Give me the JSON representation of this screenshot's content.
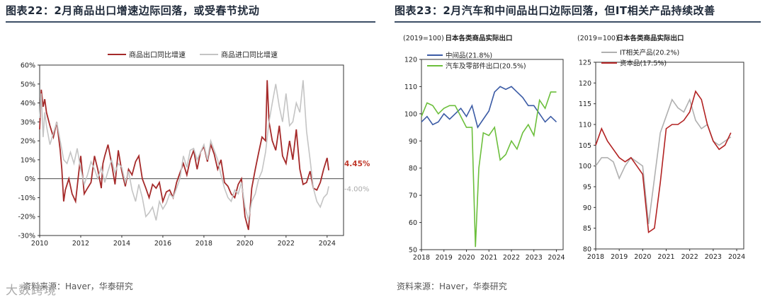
{
  "left": {
    "title": "图表22：2月商品出口增速边际回落，或受春节扰动",
    "source": "资料来源：Haver，华泰研究",
    "chart_data": {
      "type": "line",
      "title": "",
      "ylim": [
        -30,
        60
      ],
      "yticks": [
        "60%",
        "50%",
        "40%",
        "30%",
        "20%",
        "10%",
        "0%",
        "-10%",
        "-20%",
        "-30%"
      ],
      "xticks": [
        "2010",
        "2012",
        "2014",
        "2016",
        "2018",
        "2020",
        "2022",
        "2024"
      ],
      "legend_position": "top",
      "series": [
        {
          "name": "商品出口同比增速",
          "color": "#a52a2a",
          "x": [
            2010.0,
            2010.08,
            2010.17,
            2010.25,
            2010.33,
            2010.5,
            2010.67,
            2010.83,
            2011.0,
            2011.08,
            2011.17,
            2011.25,
            2011.42,
            2011.58,
            2011.75,
            2011.92,
            2012.0,
            2012.08,
            2012.17,
            2012.33,
            2012.5,
            2012.67,
            2012.83,
            2013.0,
            2013.08,
            2013.17,
            2013.33,
            2013.5,
            2013.67,
            2013.83,
            2014.0,
            2014.17,
            2014.33,
            2014.5,
            2014.67,
            2014.83,
            2015.0,
            2015.17,
            2015.33,
            2015.5,
            2015.67,
            2015.83,
            2016.0,
            2016.17,
            2016.33,
            2016.5,
            2016.67,
            2016.83,
            2017.0,
            2017.17,
            2017.33,
            2017.5,
            2017.67,
            2017.83,
            2018.0,
            2018.17,
            2018.33,
            2018.5,
            2018.67,
            2018.83,
            2019.0,
            2019.17,
            2019.33,
            2019.5,
            2019.67,
            2019.83,
            2020.0,
            2020.17,
            2020.33,
            2020.5,
            2020.67,
            2020.83,
            2021.0,
            2021.08,
            2021.17,
            2021.33,
            2021.5,
            2021.67,
            2021.83,
            2022.0,
            2022.17,
            2022.33,
            2022.5,
            2022.67,
            2022.83,
            2023.0,
            2023.17,
            2023.33,
            2023.5,
            2023.67,
            2023.83,
            2024.0,
            2024.08
          ],
          "y": [
            26,
            47,
            38,
            42,
            35,
            28,
            22,
            30,
            15,
            5,
            -12,
            -6,
            0,
            -8,
            -12,
            5,
            12,
            3,
            -8,
            -5,
            -2,
            12,
            5,
            -5,
            8,
            12,
            18,
            8,
            -3,
            15,
            4,
            -4,
            5,
            2,
            9,
            12,
            0,
            -5,
            -10,
            -3,
            -5,
            -2,
            -12,
            -7,
            -6,
            -10,
            -2,
            3,
            8,
            2,
            10,
            15,
            5,
            14,
            17,
            9,
            18,
            13,
            5,
            10,
            -2,
            -4,
            -8,
            -10,
            -3,
            0,
            -20,
            -27,
            -5,
            5,
            14,
            22,
            20,
            52,
            30,
            20,
            15,
            28,
            12,
            8,
            20,
            10,
            26,
            5,
            -3,
            -2,
            4,
            -5,
            -6,
            -2,
            5,
            11,
            4.45
          ]
        },
        {
          "name": "商品进口同比增速",
          "color": "#c4c4c4",
          "x": [
            2010.0,
            2010.08,
            2010.17,
            2010.25,
            2010.33,
            2010.5,
            2010.67,
            2010.83,
            2011.0,
            2011.17,
            2011.33,
            2011.5,
            2011.67,
            2011.83,
            2012.0,
            2012.17,
            2012.33,
            2012.5,
            2012.67,
            2012.83,
            2013.0,
            2013.17,
            2013.33,
            2013.5,
            2013.67,
            2013.83,
            2014.0,
            2014.17,
            2014.33,
            2014.5,
            2014.67,
            2014.83,
            2015.0,
            2015.17,
            2015.33,
            2015.5,
            2015.67,
            2015.83,
            2016.0,
            2016.17,
            2016.33,
            2016.5,
            2016.67,
            2016.83,
            2017.0,
            2017.17,
            2017.33,
            2017.5,
            2017.67,
            2017.83,
            2018.0,
            2018.17,
            2018.33,
            2018.5,
            2018.67,
            2018.83,
            2019.0,
            2019.17,
            2019.33,
            2019.5,
            2019.67,
            2019.83,
            2020.0,
            2020.17,
            2020.33,
            2020.5,
            2020.67,
            2020.83,
            2021.0,
            2021.17,
            2021.33,
            2021.5,
            2021.67,
            2021.83,
            2022.0,
            2022.17,
            2022.33,
            2022.5,
            2022.67,
            2022.83,
            2023.0,
            2023.17,
            2023.33,
            2023.5,
            2023.67,
            2023.83,
            2024.0,
            2024.08
          ],
          "y": [
            32,
            45,
            22,
            35,
            28,
            18,
            24,
            30,
            20,
            10,
            8,
            14,
            8,
            16,
            5,
            -3,
            2,
            9,
            5,
            0,
            6,
            -2,
            4,
            10,
            3,
            8,
            6,
            -2,
            4,
            -6,
            -12,
            -3,
            -10,
            -20,
            -18,
            -15,
            -22,
            -12,
            -16,
            -13,
            -8,
            -10,
            -5,
            0,
            12,
            6,
            15,
            16,
            10,
            14,
            18,
            10,
            20,
            15,
            10,
            2,
            -5,
            -10,
            -12,
            -6,
            -8,
            -2,
            -15,
            -22,
            -12,
            -8,
            0,
            4,
            14,
            30,
            40,
            50,
            38,
            30,
            45,
            28,
            30,
            40,
            35,
            52,
            25,
            10,
            -5,
            -12,
            -15,
            -10,
            -8,
            -4
          ]
        }
      ],
      "end_labels": [
        {
          "series": "商品出口同比增速",
          "text": "4.45%",
          "color": "#c0392b"
        },
        {
          "series": "商品进口同比增速",
          "text": "-4.00%",
          "color": "#aaaaaa"
        }
      ]
    }
  },
  "right": {
    "title": "图表23：2月汽车和中间品出口边际回落，但IT相关产品持续改善",
    "source": "资料来源：Haver，华泰研究",
    "chart_data": [
      {
        "type": "line",
        "title": "日本各类商品实际出口",
        "unit": "(2019=100)",
        "ylim": [
          50,
          120
        ],
        "yticks": [
          "120",
          "110",
          "100",
          "90",
          "80",
          "70",
          "60",
          "50"
        ],
        "xticks": [
          "2018",
          "2019",
          "2020",
          "2021",
          "2022",
          "2023",
          "2024"
        ],
        "series": [
          {
            "name": "中间品(21.8%)",
            "color": "#3b5ba5",
            "x": [
              2018.0,
              2018.25,
              2018.5,
              2018.75,
              2019.0,
              2019.25,
              2019.5,
              2019.75,
              2020.0,
              2020.25,
              2020.5,
              2020.75,
              2021.0,
              2021.25,
              2021.5,
              2021.75,
              2022.0,
              2022.25,
              2022.5,
              2022.75,
              2023.0,
              2023.25,
              2023.5,
              2023.75,
              2024.0
            ],
            "y": [
              97,
              99,
              96,
              97,
              100,
              98,
              100,
              102,
              99,
              103,
              95,
              98,
              101,
              108,
              110,
              109,
              110,
              108,
              106,
              103,
              103,
              100,
              97,
              99,
              97
            ]
          },
          {
            "name": "汽车及零部件出口(20.5%)",
            "color": "#6cbf3c",
            "x": [
              2018.0,
              2018.25,
              2018.5,
              2018.75,
              2019.0,
              2019.25,
              2019.5,
              2019.75,
              2020.0,
              2020.25,
              2020.4,
              2020.55,
              2020.75,
              2021.0,
              2021.25,
              2021.5,
              2021.75,
              2022.0,
              2022.25,
              2022.5,
              2022.75,
              2023.0,
              2023.25,
              2023.5,
              2023.75,
              2024.0
            ],
            "y": [
              99,
              104,
              103,
              100,
              102,
              103,
              103,
              99,
              95,
              95,
              51,
              80,
              93,
              92,
              95,
              83,
              85,
              90,
              87,
              93,
              96,
              92,
              105,
              102,
              108,
              108
            ]
          }
        ]
      },
      {
        "type": "line",
        "title": "日本各类商品实际出口",
        "unit": "(2019=100)",
        "ylim": [
          80,
          125
        ],
        "yticks": [
          "125",
          "120",
          "115",
          "110",
          "105",
          "100",
          "95",
          "90",
          "85",
          "80"
        ],
        "xticks": [
          "2018",
          "2019",
          "2020",
          "2021",
          "2022",
          "2023",
          "2024"
        ],
        "series": [
          {
            "name": "IT相关产品(20.2%)",
            "color": "#b0b0b0",
            "x": [
              2018.0,
              2018.25,
              2018.5,
              2018.75,
              2019.0,
              2019.25,
              2019.5,
              2019.75,
              2020.0,
              2020.25,
              2020.5,
              2020.75,
              2021.0,
              2021.25,
              2021.5,
              2021.75,
              2022.0,
              2022.25,
              2022.5,
              2022.75,
              2023.0,
              2023.25,
              2023.5,
              2023.75
            ],
            "y": [
              100,
              102,
              102,
              101,
              97,
              100,
              102,
              101,
              100,
              86,
              97,
              108,
              112,
              116,
              114,
              113,
              116,
              111,
              109,
              110,
              106,
              105,
              106,
              107
            ]
          },
          {
            "name": "资本品(17.5%)",
            "color": "#b22222",
            "x": [
              2018.0,
              2018.25,
              2018.5,
              2018.75,
              2019.0,
              2019.25,
              2019.5,
              2019.75,
              2020.0,
              2020.25,
              2020.5,
              2020.75,
              2021.0,
              2021.25,
              2021.5,
              2021.75,
              2022.0,
              2022.25,
              2022.5,
              2022.75,
              2023.0,
              2023.25,
              2023.5,
              2023.75
            ],
            "y": [
              105,
              109,
              106,
              104,
              102,
              101,
              102,
              100,
              98,
              84,
              85,
              96,
              109,
              110,
              110,
              111,
              113,
              118,
              116,
              110,
              106,
              104,
              105,
              108
            ]
          }
        ]
      }
    ]
  },
  "watermark": "大数跨境"
}
